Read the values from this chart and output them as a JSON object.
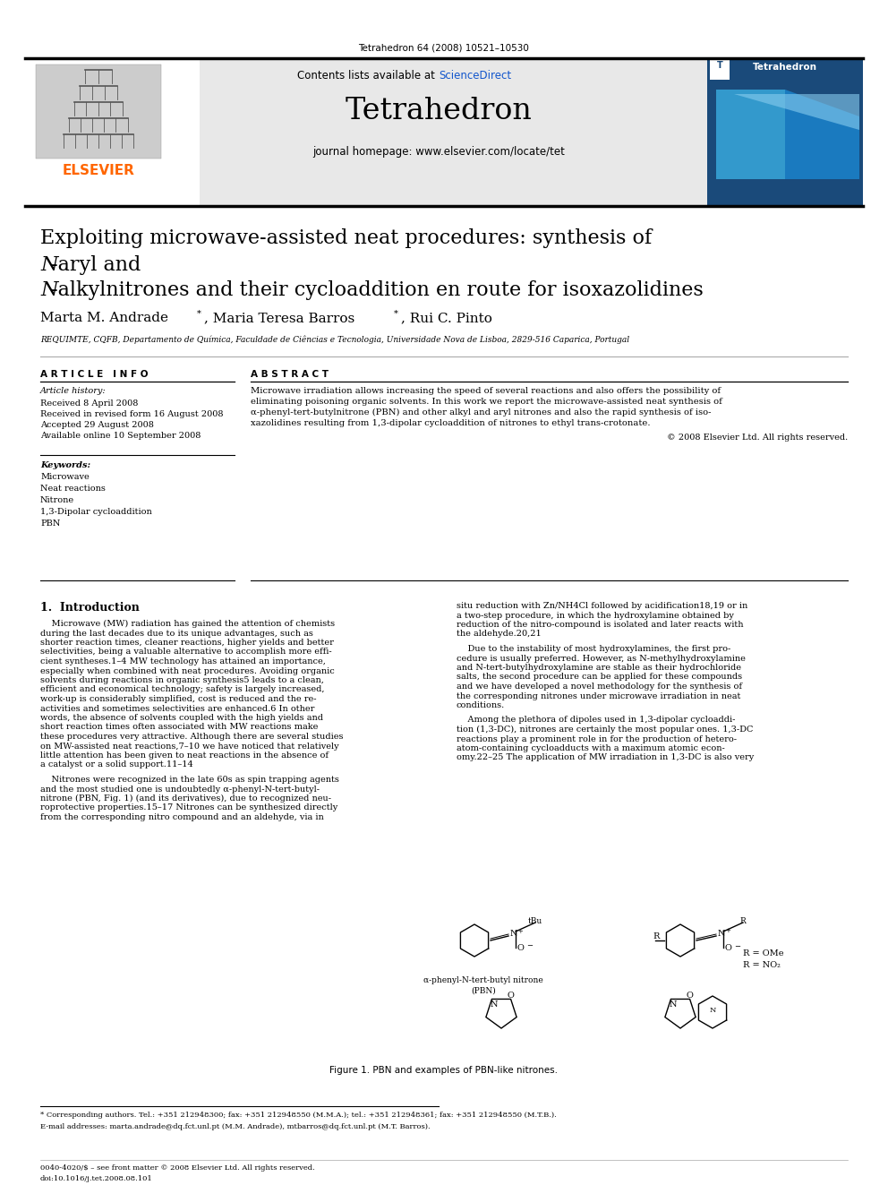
{
  "page_title": "Tetrahedron 64 (2008) 10521–10530",
  "journal_name": "Tetrahedron",
  "journal_homepage": "journal homepage: www.elsevier.com/locate/tet",
  "contents_line_before": "Contents lists available at ",
  "contents_line_link": "ScienceDirect",
  "sciencedirect_color": "#1155CC",
  "elsevier_color": "#FF6600",
  "elsevier_text": "ELSEVIER",
  "affiliation": "REQUIMTE, CQFB, Departamento de Química, Faculdade de Ciências e Tecnologia, Universidade Nova de Lisboa, 2829-516 Caparica, Portugal",
  "article_info_header": "A R T I C L E   I N F O",
  "abstract_header": "A B S T R A C T",
  "article_history_label": "Article history:",
  "received1": "Received 8 April 2008",
  "received2": "Received in revised form 16 August 2008",
  "accepted": "Accepted 29 August 2008",
  "available": "Available online 10 September 2008",
  "keywords_label": "Keywords:",
  "keywords": [
    "Microwave",
    "Neat reactions",
    "Nitrone",
    "1,3-Dipolar cycloaddition",
    "PBN"
  ],
  "abstract_text": "Microwave irradiation allows increasing the speed of several reactions and also offers the possibility of eliminating poisoning organic solvents. In this work we report the microwave-assisted neat synthesis of α-phenyl-tert-butylnitrone (PBN) and other alkyl and aryl nitrones and also the rapid synthesis of isoxazolidines resulting from 1,3-dipolar cycloaddition of nitrones to ethyl trans-crotonate.",
  "copyright": "© 2008 Elsevier Ltd. All rights reserved.",
  "footnote1": "* Corresponding authors. Tel.: +351 212948300; fax: +351 212948550 (M.M.A.); tel.: +351 212948361; fax: +351 212948550 (M.T.B.).",
  "footnote2": "E-mail addresses: marta.andrade@dq.fct.unl.pt (M.M. Andrade), mtbarros@dq.fct.unl.pt (M.T. Barros).",
  "bottom_line1": "0040-4020/$ – see front matter © 2008 Elsevier Ltd. All rights reserved.",
  "bottom_line2": "doi:10.1016/j.tet.2008.08.101",
  "figure_caption": "Figure 1. PBN and examples of PBN-like nitrones.",
  "header_bg": "#E8E8E8",
  "body_bg": "#FFFFFF",
  "text_color": "#000000",
  "intro_left_col": [
    "    Microwave (MW) radiation has gained the attention of chemists\nduring the last decades due to its unique advantages, such as\nshorter reaction times, cleaner reactions, higher yields and better\nselectivities, being a valuable alternative to accomplish more effi-\ncient syntheses.1–4 MW technology has attained an importance,\nespecially when combined with neat procedures. Avoiding organic\nsolvents during reactions in organic synthesis5 leads to a clean,\nefficient and economical technology; safety is largely increased,\nwork-up is considerably simplified, cost is reduced and the re-\nactivities and sometimes selectivities are enhanced.6 In other\nwords, the absence of solvents coupled with the high yields and\nshort reaction times often associated with MW reactions make\nthese procedures very attractive. Although there are several studies\non MW-assisted neat reactions,7–10 we have noticed that relatively\nlittle attention has been given to neat reactions in the absence of\na catalyst or a solid support.11–14",
    "    Nitrones were recognized in the late 60s as spin trapping agents\nand the most studied one is undoubtedly α-phenyl-N-tert-butyl-\nnitrone (PBN, Fig. 1) (and its derivatives), due to recognized neu-\nroprotective properties.15–17 Nitrones can be synthesized directly\nfrom the corresponding nitro compound and an aldehyde, via in"
  ],
  "intro_right_col": [
    "situ reduction with Zn/NH4Cl followed by acidification18,19 or in\na two-step procedure, in which the hydroxylamine obtained by\nreduction of the nitro-compound is isolated and later reacts with\nthe aldehyde.20,21",
    "    Due to the instability of most hydroxylamines, the first pro-\ncedure is usually preferred. However, as N-methylhydroxylamine\nand N-tert-butylhydroxylamine are stable as their hydrochloride\nsalts, the second procedure can be applied for these compounds\nand we have developed a novel methodology for the synthesis of\nthe corresponding nitrones under microwave irradiation in neat\nconditions.",
    "    Among the plethora of dipoles used in 1,3-dipolar cycloaddi-\ntion (1,3-DC), nitrones are certainly the most popular ones. 1,3-DC\nreactions play a prominent role in for the production of hetero-\natom-containing cycloadducts with a maximum atomic econ-\nomy.22–25 The application of MW irradiation in 1,3-DC is also very"
  ]
}
